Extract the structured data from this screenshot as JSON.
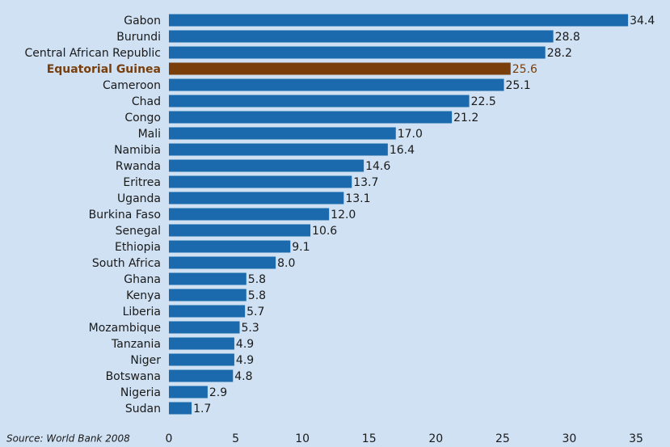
{
  "chart_data": {
    "type": "hbar",
    "source": "Source: World Bank 2008",
    "categories": [
      "Gabon",
      "Burundi",
      "Central African Republic",
      "Equatorial Guinea",
      "Cameroon",
      "Chad",
      "Congo",
      "Mali",
      "Namibia",
      "Rwanda",
      "Eritrea",
      "Uganda",
      "Burkina Faso",
      "Senegal",
      "Ethiopia",
      "South Africa",
      "Ghana",
      "Kenya",
      "Liberia",
      "Mozambique",
      "Tanzania",
      "Niger",
      "Botswana",
      "Nigeria",
      "Sudan"
    ],
    "values": [
      34.4,
      28.8,
      28.2,
      25.6,
      25.1,
      22.5,
      21.2,
      17.0,
      16.4,
      14.6,
      13.7,
      13.1,
      12.0,
      10.6,
      9.1,
      8.0,
      5.8,
      5.8,
      5.7,
      5.3,
      4.9,
      4.9,
      4.8,
      2.9,
      1.7
    ],
    "value_labels": [
      "34.4",
      "28.8",
      "28.2",
      "25.6",
      "25.1",
      "22.5",
      "21.2",
      "17.0",
      "16.4",
      "14.6",
      "13.7",
      "13.1",
      "12.0",
      "10.6",
      "9.1",
      "8.0",
      "5.8",
      "5.8",
      "5.7",
      "5.3",
      "4.9",
      "4.9",
      "4.8",
      "2.9",
      "1.7"
    ],
    "colors": [
      "#1b6aad",
      "#1b6aad",
      "#1b6aad",
      "#7a3e0b",
      "#1b6aad",
      "#1b6aad",
      "#1b6aad",
      "#1b6aad",
      "#1b6aad",
      "#1b6aad",
      "#1b6aad",
      "#1b6aad",
      "#1b6aad",
      "#1b6aad",
      "#1b6aad",
      "#1b6aad",
      "#1b6aad",
      "#1b6aad",
      "#1b6aad",
      "#1b6aad",
      "#1b6aad",
      "#1b6aad",
      "#1b6aad",
      "#1b6aad",
      "#1b6aad"
    ],
    "xlim": [
      0,
      35
    ],
    "xticks": [
      0,
      5,
      10,
      15,
      20,
      25,
      30,
      35
    ],
    "grid": false
  }
}
